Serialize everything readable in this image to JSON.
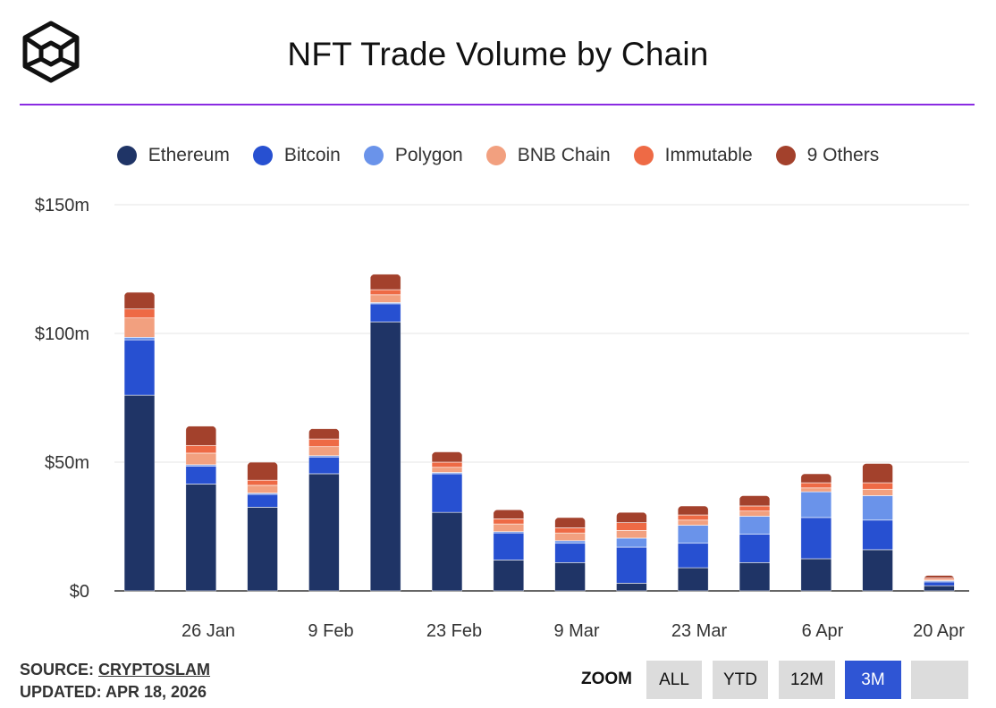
{
  "header": {
    "title": "NFT Trade Volume by Chain",
    "logo": "cube-logo"
  },
  "legend": [
    {
      "name": "Ethereum",
      "color": "#1f3466"
    },
    {
      "name": "Bitcoin",
      "color": "#2750d1"
    },
    {
      "name": "Polygon",
      "color": "#6a93ea"
    },
    {
      "name": "BNB Chain",
      "color": "#f2a07f"
    },
    {
      "name": "Immutable",
      "color": "#ee6a45"
    },
    {
      "name": "9 Others",
      "color": "#a3412c"
    }
  ],
  "footer": {
    "source_prefix": "SOURCE: ",
    "source_link": "CRYPTOSLAM",
    "updated": "UPDATED: APR 18, 2026"
  },
  "zoom": {
    "label": "ZOOM",
    "buttons": [
      "ALL",
      "YTD",
      "12M",
      "3M",
      ""
    ],
    "active": "3M"
  },
  "chart_data": {
    "type": "bar",
    "stacked": true,
    "title": "NFT Trade Volume by Chain",
    "ylim": [
      0,
      150
    ],
    "yticks": [
      0,
      50,
      100,
      150
    ],
    "ytick_labels": [
      "$0",
      "$50m",
      "$100m",
      "$150m"
    ],
    "xtick_labels": [
      "26 Jan",
      "9 Feb",
      "23 Feb",
      "9 Mar",
      "23 Mar",
      "6 Apr",
      "20 Apr"
    ],
    "grid": true,
    "legend_position": "top",
    "series": [
      {
        "name": "Ethereum",
        "values": [
          76,
          41.5,
          32.5,
          45.5,
          104.5,
          30.5,
          12,
          11,
          3,
          9,
          11,
          12.5,
          16,
          2
        ]
      },
      {
        "name": "Bitcoin",
        "values": [
          21.5,
          7,
          5,
          6.5,
          7,
          15,
          10.5,
          7.5,
          14,
          9.5,
          11,
          16,
          11.5,
          1.5
        ]
      },
      {
        "name": "Polygon",
        "values": [
          1,
          0.5,
          0.5,
          0.5,
          0.5,
          0.5,
          0.5,
          1,
          3.5,
          7,
          7,
          10,
          9.5,
          0.5
        ]
      },
      {
        "name": "BNB Chain",
        "values": [
          7.5,
          4.5,
          3,
          3.5,
          3,
          2,
          3,
          3,
          3,
          2,
          2,
          1.5,
          2.5,
          0.5
        ]
      },
      {
        "name": "Immutable",
        "values": [
          3.5,
          3,
          2,
          3,
          2,
          2,
          2,
          2,
          3,
          2,
          2,
          2,
          2.5,
          0.5
        ]
      },
      {
        "name": "9 Others",
        "values": [
          6.5,
          7.5,
          7,
          4,
          6,
          4,
          3.5,
          4,
          4,
          3.5,
          4,
          3.5,
          7.5,
          1
        ]
      }
    ]
  }
}
